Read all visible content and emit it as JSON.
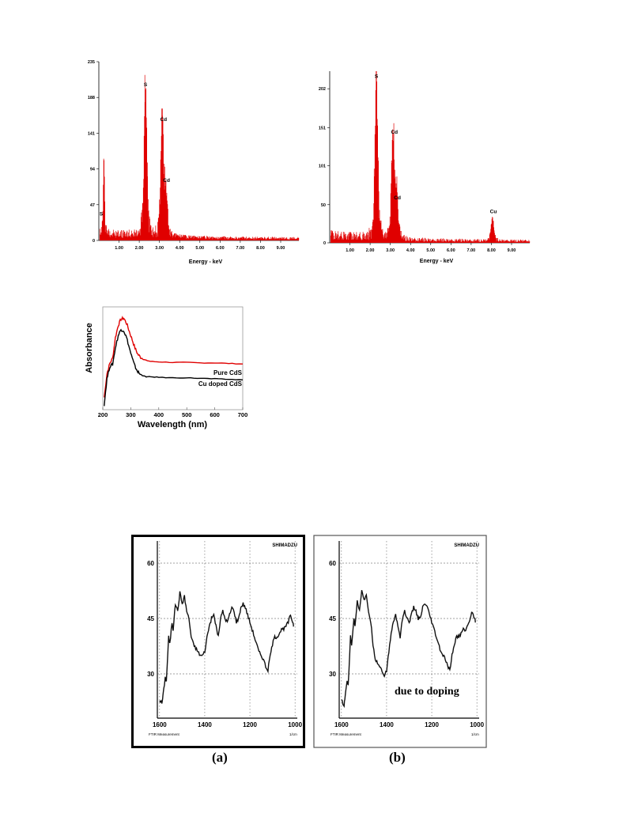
{
  "edx_pure": {
    "type": "bar",
    "xlabel": "Energy - keV",
    "xlim": [
      0,
      9.9
    ],
    "ylim": [
      0,
      235
    ],
    "x_ticks": [
      "1.00",
      "2.00",
      "3.00",
      "4.00",
      "5.00",
      "6.00",
      "7.00",
      "8.00",
      "9.00"
    ],
    "y_ticks": [
      "0",
      "47",
      "94",
      "141",
      "188",
      "235"
    ],
    "series_color": "#e00000",
    "peaks": [
      {
        "label": "S",
        "x": 0.25,
        "y": 108
      },
      {
        "label": "S",
        "x": 2.31,
        "y": 196
      },
      {
        "label": "Cd",
        "x": 3.13,
        "y": 150
      },
      {
        "label": "Cd",
        "x": 3.32,
        "y": 62
      }
    ],
    "peak_labels": [
      {
        "text": "S",
        "x": 0.12,
        "y": 33
      },
      {
        "text": "S",
        "x": 2.31,
        "y": 203
      },
      {
        "text": "Cd",
        "x": 3.2,
        "y": 157
      },
      {
        "text": "Cd",
        "x": 3.35,
        "y": 77
      }
    ]
  },
  "edx_doped": {
    "type": "bar",
    "xlabel": "Energy - keV",
    "xlim": [
      0,
      9.9
    ],
    "ylim": [
      0,
      225
    ],
    "x_ticks": [
      "1.00",
      "2.00",
      "3.00",
      "4.00",
      "5.00",
      "6.00",
      "7.00",
      "8.00",
      "9.00"
    ],
    "y_ticks": [
      "0",
      "50",
      "101",
      "151",
      "202"
    ],
    "series_color": "#e00000",
    "peaks": [
      {
        "label": "S",
        "x": 2.31,
        "y": 210
      },
      {
        "label": "Cd",
        "x": 3.13,
        "y": 133
      },
      {
        "label": "Cd",
        "x": 3.32,
        "y": 58
      },
      {
        "label": "Cu",
        "x": 8.05,
        "y": 31
      }
    ],
    "peak_labels": [
      {
        "text": "S",
        "x": 2.31,
        "y": 216
      },
      {
        "text": "Cd",
        "x": 3.2,
        "y": 143
      },
      {
        "text": "Cd",
        "x": 3.35,
        "y": 57
      },
      {
        "text": "Cu",
        "x": 8.1,
        "y": 39
      }
    ]
  },
  "uv": {
    "type": "line",
    "xlabel": "Wavelength (nm)",
    "ylabel": "Absorbance",
    "xlim": [
      200,
      700
    ],
    "ylim": [
      0,
      1
    ],
    "x_ticks": [
      "200",
      "300",
      "400",
      "500",
      "600",
      "700"
    ],
    "series": [
      {
        "name": "Pure CdS",
        "color": "#e00000",
        "x": [
          205,
          215,
          225,
          235,
          245,
          255,
          265,
          275,
          285,
          295,
          305,
          315,
          325,
          335,
          345,
          355,
          370,
          400,
          450,
          500,
          550,
          600,
          650,
          700
        ],
        "y": [
          0.12,
          0.35,
          0.45,
          0.5,
          0.7,
          0.82,
          0.88,
          0.89,
          0.84,
          0.76,
          0.68,
          0.6,
          0.54,
          0.51,
          0.49,
          0.48,
          0.47,
          0.465,
          0.46,
          0.46,
          0.455,
          0.455,
          0.45,
          0.445
        ]
      },
      {
        "name": "Cu doped CdS",
        "color": "#000000",
        "x": [
          205,
          215,
          225,
          235,
          245,
          255,
          265,
          275,
          285,
          295,
          305,
          315,
          325,
          335,
          345,
          355,
          370,
          400,
          450,
          500,
          550,
          600,
          650,
          700
        ],
        "y": [
          0.05,
          0.3,
          0.42,
          0.44,
          0.6,
          0.72,
          0.78,
          0.77,
          0.7,
          0.6,
          0.5,
          0.42,
          0.37,
          0.34,
          0.33,
          0.32,
          0.32,
          0.315,
          0.31,
          0.31,
          0.305,
          0.3,
          0.295,
          0.29
        ]
      }
    ]
  },
  "ftir": [
    {
      "brand": "SHIMADZU",
      "footer_left": "FTIR Measurement",
      "footer_right": "1/cm",
      "caption": "(a)",
      "annotation": "",
      "xlim": [
        1610,
        990
      ],
      "ylim": [
        18,
        66
      ],
      "x_ticks": [
        "1600",
        "1400",
        "1200",
        "1000"
      ],
      "y_ticks": [
        "60",
        "45",
        "30"
      ],
      "x": [
        1600,
        1590,
        1585,
        1575,
        1570,
        1560,
        1555,
        1545,
        1540,
        1530,
        1520,
        1510,
        1500,
        1490,
        1480,
        1470,
        1460,
        1450,
        1440,
        1430,
        1420,
        1410,
        1400,
        1390,
        1380,
        1370,
        1360,
        1350,
        1340,
        1330,
        1320,
        1310,
        1300,
        1290,
        1280,
        1270,
        1260,
        1250,
        1240,
        1230,
        1220,
        1210,
        1200,
        1190,
        1180,
        1170,
        1160,
        1150,
        1140,
        1130,
        1120,
        1110,
        1100,
        1090,
        1080,
        1070,
        1060,
        1050,
        1040,
        1030,
        1020,
        1010,
        1005
      ],
      "y": [
        23,
        22,
        24,
        29,
        28,
        40,
        38,
        44,
        42,
        49,
        47,
        52,
        49,
        51,
        47,
        45,
        40,
        38,
        37,
        36,
        35,
        35,
        36,
        40,
        43,
        45,
        46,
        43,
        40,
        45,
        47,
        45,
        44,
        46,
        48,
        47,
        44,
        45,
        48,
        49,
        48,
        46,
        44,
        42,
        40,
        38,
        36,
        35,
        34,
        32,
        31,
        35,
        38,
        40,
        40,
        41,
        42,
        42,
        43,
        44,
        46,
        44,
        43
      ]
    },
    {
      "brand": "SHIMADZU",
      "footer_left": "FTIR Measurement",
      "footer_right": "1/cm",
      "caption": "(b)",
      "annotation": "due to doping",
      "xlim": [
        1610,
        990
      ],
      "ylim": [
        18,
        66
      ],
      "x_ticks": [
        "1600",
        "1400",
        "1200",
        "1000"
      ],
      "y_ticks": [
        "60",
        "45",
        "30"
      ],
      "x": [
        1600,
        1590,
        1585,
        1575,
        1570,
        1560,
        1555,
        1545,
        1540,
        1530,
        1520,
        1510,
        1500,
        1490,
        1480,
        1470,
        1460,
        1450,
        1440,
        1430,
        1420,
        1410,
        1400,
        1390,
        1380,
        1370,
        1360,
        1350,
        1340,
        1330,
        1320,
        1310,
        1300,
        1290,
        1280,
        1270,
        1260,
        1250,
        1240,
        1230,
        1220,
        1210,
        1200,
        1190,
        1180,
        1170,
        1160,
        1150,
        1140,
        1130,
        1120,
        1110,
        1100,
        1090,
        1080,
        1070,
        1060,
        1050,
        1040,
        1030,
        1020,
        1010,
        1005
      ],
      "y": [
        23,
        21,
        23,
        28,
        27,
        40,
        38,
        45,
        43,
        50,
        47,
        53,
        50,
        51,
        47,
        44,
        38,
        34,
        33,
        32,
        31,
        29,
        31,
        36,
        41,
        44,
        46,
        43,
        40,
        45,
        47,
        45,
        44,
        46,
        48,
        47,
        45,
        45,
        48,
        49,
        48,
        46,
        44,
        42,
        40,
        38,
        36,
        35,
        34,
        32,
        31,
        35,
        38,
        40,
        40,
        41,
        42,
        42,
        43,
        45,
        47,
        45,
        44
      ]
    }
  ]
}
